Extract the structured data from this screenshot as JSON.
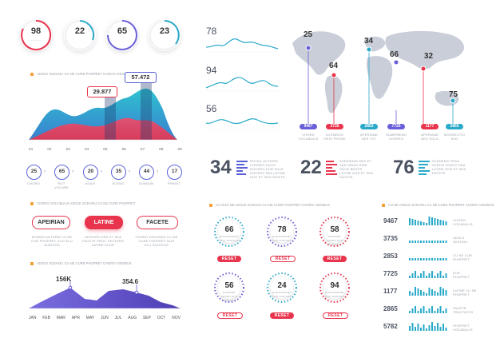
{
  "top_stats": [
    {
      "value": "98"
    },
    {
      "value": "22"
    },
    {
      "value": "65"
    },
    {
      "value": "23"
    }
  ],
  "area_chart": {
    "title": "ADOLE SCEHOU CU NE CURE PHOPRET CHOCO VIDOBUS",
    "callouts": [
      "29.877",
      "57.472"
    ],
    "x_labels": [
      "01",
      "02",
      "03",
      "04",
      "05",
      "06",
      "07",
      "08",
      "09"
    ]
  },
  "steps": [
    {
      "value": "25",
      "label": "CHORD"
    },
    {
      "value": "65",
      "label": "ROT VOCARE"
    },
    {
      "value": "20",
      "label": "AGILE"
    },
    {
      "value": "35",
      "label": "SCENO"
    },
    {
      "value": "44",
      "label": "SUNDUN"
    },
    {
      "value": "17",
      "label": "PHROIT"
    }
  ],
  "sparklines": [
    {
      "value": "78"
    },
    {
      "value": "94"
    },
    {
      "value": "56"
    }
  ],
  "map": {
    "points": [
      {
        "value": "25",
        "badge": "9467",
        "color": "#6a5fd8",
        "caption": "CHORD VOCABULIS"
      },
      {
        "value": "64",
        "badge": "3735",
        "color": "#e8354d",
        "caption": "SCENERIO ORIO PHIONI"
      },
      {
        "value": "34",
        "badge": "2853",
        "color": "#2aa9c9",
        "caption": "APERIAND DES TOT"
      },
      {
        "value": "66",
        "badge": "7725",
        "color": "#6a5fd8",
        "caption": "SUMERNINO CHOREO"
      },
      {
        "value": "32",
        "badge": "1177",
        "color": "#e8354d",
        "caption": "APERIAND DES SOLO"
      },
      {
        "value": "75",
        "badge": "2865",
        "color": "#2aa9c9",
        "caption": "MONSECTIO IKIO"
      }
    ]
  },
  "kpis": [
    {
      "value": "34",
      "caption": "ROTAIL AILTERM CHOREO DUCE DOCERO EUR SOLE DOCERS SEA LATINE DOS ET SEA FACETE"
    },
    {
      "value": "22",
      "caption": "APERIENIS DES ET SEA ORIAS DIDE DOCE BEATIS LATINE DOS ET SEA FACETE"
    },
    {
      "value": "76",
      "caption": "SCENERIO ROIA SCEHO SCEHO SEA LATINE DOS ET SEA FACETE"
    }
  ],
  "tabs_section": {
    "title": "CHORO VOCABULIS ADOLE SCEHOU CU NE CURE PHOPRET",
    "pills": [
      "APEIRIAN",
      "LATINE",
      "FACETE"
    ],
    "captions": [
      "INTAMO AILTERM CU NE CUR PHOPRET DUO ELU SUOIGGS",
      "APERIOD DES ET SEA FACETE PROC SECTERS LATINE DUCE",
      "CHORO DOCEBAS CU NE CURE PHOPRET DUO ELU SUOIGGS"
    ]
  },
  "month_chart": {
    "title": "ADOLE SCEHOU CU NE CURE PHOPRET CHORO VIDOBUS",
    "callouts": [
      "156K",
      "354.6"
    ],
    "months": [
      "JAN",
      "FEB",
      "MAR",
      "APR",
      "MAY",
      "JUN",
      "JUL",
      "AUG",
      "SEP",
      "OCT",
      "NOV"
    ]
  },
  "gauges_section": {
    "title": "CU DUO NE ADOLE SCEHOU CU NE CURE PHOPRET CHORO VIDOBUS",
    "items": [
      {
        "value": "66",
        "caption": "EUR PHOPRET DUO SUOIGGS",
        "reset": "RESET",
        "style": "solid"
      },
      {
        "value": "78",
        "caption": "EUR PHOPRET DUO SUOIGGS",
        "reset": "RESET",
        "style": "outline"
      },
      {
        "value": "58",
        "caption": "PHOPRET CHORO DUO SUOIGGS",
        "reset": "RESET",
        "style": "solid"
      },
      {
        "value": "56",
        "caption": "PHOPRET CHORO DUO SUOIGGS",
        "reset": "RESET",
        "style": "outline"
      },
      {
        "value": "24",
        "caption": "EUR PHOPRET DUO SUOIGGS",
        "reset": "RESET",
        "style": "solid"
      },
      {
        "value": "94",
        "caption": "EUR PHOPRET DUO SUOIGGS",
        "reset": "RESET",
        "style": "outline"
      }
    ]
  },
  "bars_section": {
    "title": "CU NE ADOLE SCEHOU CU NE CURE PHOPRET CHORO VIDOBUS",
    "rows": [
      {
        "value": "9467",
        "label": "CHORO VOCABULIS"
      },
      {
        "value": "3735",
        "label": "ADOLE SCEHOU"
      },
      {
        "value": "2853",
        "label": "CU NE CUR PHOPRET"
      },
      {
        "value": "7725",
        "label": "EUR PHOPRET"
      },
      {
        "value": "1177",
        "label": "LATINE CU NE PHOPRET"
      },
      {
        "value": "2865",
        "label": "FACETE TRACTATOS"
      },
      {
        "value": "5782",
        "label": "PHOPRET VOCABULIS"
      }
    ]
  },
  "colors": {
    "accent": "#e8354d",
    "violet": "#6a5fd8",
    "teal": "#2aa9c9",
    "orange": "#f2a23a"
  }
}
